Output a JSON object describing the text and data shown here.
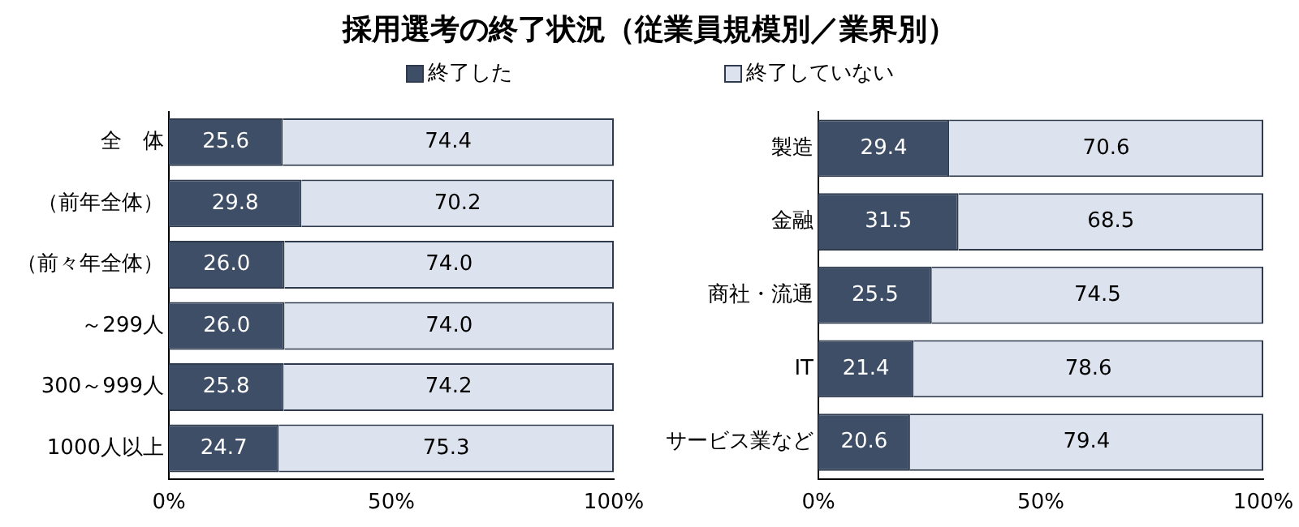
{
  "chart_data": [
    {
      "type": "bar",
      "orientation": "horizontal",
      "stacked": true,
      "title": "採用選考の終了状況（従業員規模別／業界別）",
      "legend": "top",
      "categories": [
        "全　体",
        "（前年全体）",
        "（前々年全体）",
        "～299人",
        "300～999人",
        "1000人以上"
      ],
      "series": [
        {
          "name": "終了した",
          "color": "#3d4e66",
          "values": [
            25.6,
            29.8,
            26.0,
            26.0,
            25.8,
            24.7
          ],
          "value_labels": [
            "25.6",
            "29.8",
            "26.0",
            "26.0",
            "25.8",
            "24.7"
          ]
        },
        {
          "name": "終了していない",
          "color": "#dde3ee",
          "values": [
            74.4,
            70.2,
            74.0,
            74.0,
            74.2,
            75.3
          ],
          "value_labels": [
            "74.4",
            "70.2",
            "74.0",
            "74.0",
            "74.2",
            "75.3"
          ]
        }
      ],
      "xlim": [
        0,
        100
      ],
      "xticks": [
        {
          "value": 0,
          "label": "0%"
        },
        {
          "value": 50,
          "label": "50%"
        },
        {
          "value": 100,
          "label": "100%"
        }
      ]
    },
    {
      "type": "bar",
      "orientation": "horizontal",
      "stacked": true,
      "categories": [
        "製造",
        "金融",
        "商社・流通",
        "IT",
        "サービス業など"
      ],
      "series": [
        {
          "color": "#3d4e66",
          "values": [
            29.4,
            31.5,
            25.5,
            21.4,
            20.6
          ],
          "value_labels": [
            "29.4",
            "31.5",
            "25.5",
            "21.4",
            "20.6"
          ]
        },
        {
          "color": "#dde3ee",
          "values": [
            70.6,
            68.5,
            74.5,
            78.6,
            79.4
          ],
          "value_labels": [
            "70.6",
            "68.5",
            "74.5",
            "78.6",
            "79.4"
          ]
        }
      ],
      "xlim": [
        0,
        100
      ],
      "xticks": [
        {
          "value": 0,
          "label": "0%"
        },
        {
          "value": 50,
          "label": "50%"
        },
        {
          "value": 100,
          "label": "100%"
        }
      ]
    }
  ]
}
